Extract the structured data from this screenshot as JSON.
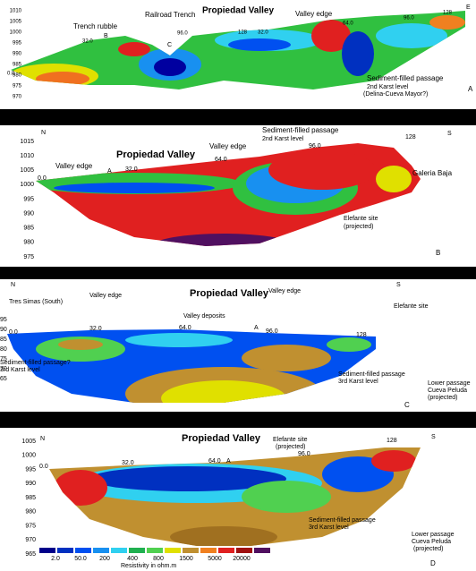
{
  "panels": [
    {
      "texts": [
        "Trench rubble",
        "Railroad Trench",
        "Propiedad Valley",
        "Valley edge",
        "Sediment-filled passage",
        "2nd Karst level",
        "(Delina-Cueva Mayor?)",
        "0.0",
        "32.0",
        "96.0",
        "128",
        "32.0",
        "64.0",
        "96.0",
        "128",
        "B",
        "C",
        "A",
        "E"
      ],
      "yticks": [
        "1010",
        "1005",
        "1000",
        "995",
        "990",
        "985",
        "980",
        "975",
        "970"
      ]
    },
    {
      "texts": [
        "N",
        "S",
        "Propiedad Valley",
        "Valley edge",
        "Sediment-filled passage",
        "2nd Karst level",
        "Valley edge",
        "Galeria Baja",
        "Elefante site",
        "(projected)",
        "0.0",
        "32.0",
        "64.0",
        "96.0",
        "128",
        "A",
        "B"
      ],
      "yticks": [
        "1015",
        "1010",
        "1005",
        "1000",
        "995",
        "990",
        "985",
        "980",
        "975"
      ]
    },
    {
      "texts": [
        "N",
        "S",
        "Propiedad Valley",
        "Valley edge",
        "Valley edge",
        "Tres Simas (South)",
        "Elefante site",
        "Valley deposits",
        "0.0",
        "32.0",
        "64.0",
        "A",
        "96.0",
        "128",
        "Sediment-filled passage?",
        "3rd Karst level",
        "Sediment-filled passage",
        "3rd Karst level",
        "Lower passage",
        "Cueva Peluda",
        "(projected)",
        "C"
      ],
      "yticks": [
        "95",
        "90",
        "85",
        "80",
        "75",
        "70",
        "65"
      ]
    },
    {
      "texts": [
        "N",
        "S",
        "Propiedad Valley",
        "Elefante site",
        "(projected)",
        "128",
        "96.0",
        "64.0",
        "A",
        "32.0",
        "0.0",
        "Sediment-filled passage",
        "3rd Karst level",
        "Lower passage",
        "Cueva Peluda",
        "(projected)",
        "D"
      ],
      "yticks": [
        "1005",
        "1000",
        "995",
        "990",
        "985",
        "980",
        "975",
        "970",
        "965"
      ]
    }
  ],
  "legend": {
    "values": [
      "2.0",
      "50.0",
      "200",
      "400",
      "800",
      "1500",
      "5000",
      "20000"
    ],
    "title": "Resistivity in ohm.m"
  }
}
